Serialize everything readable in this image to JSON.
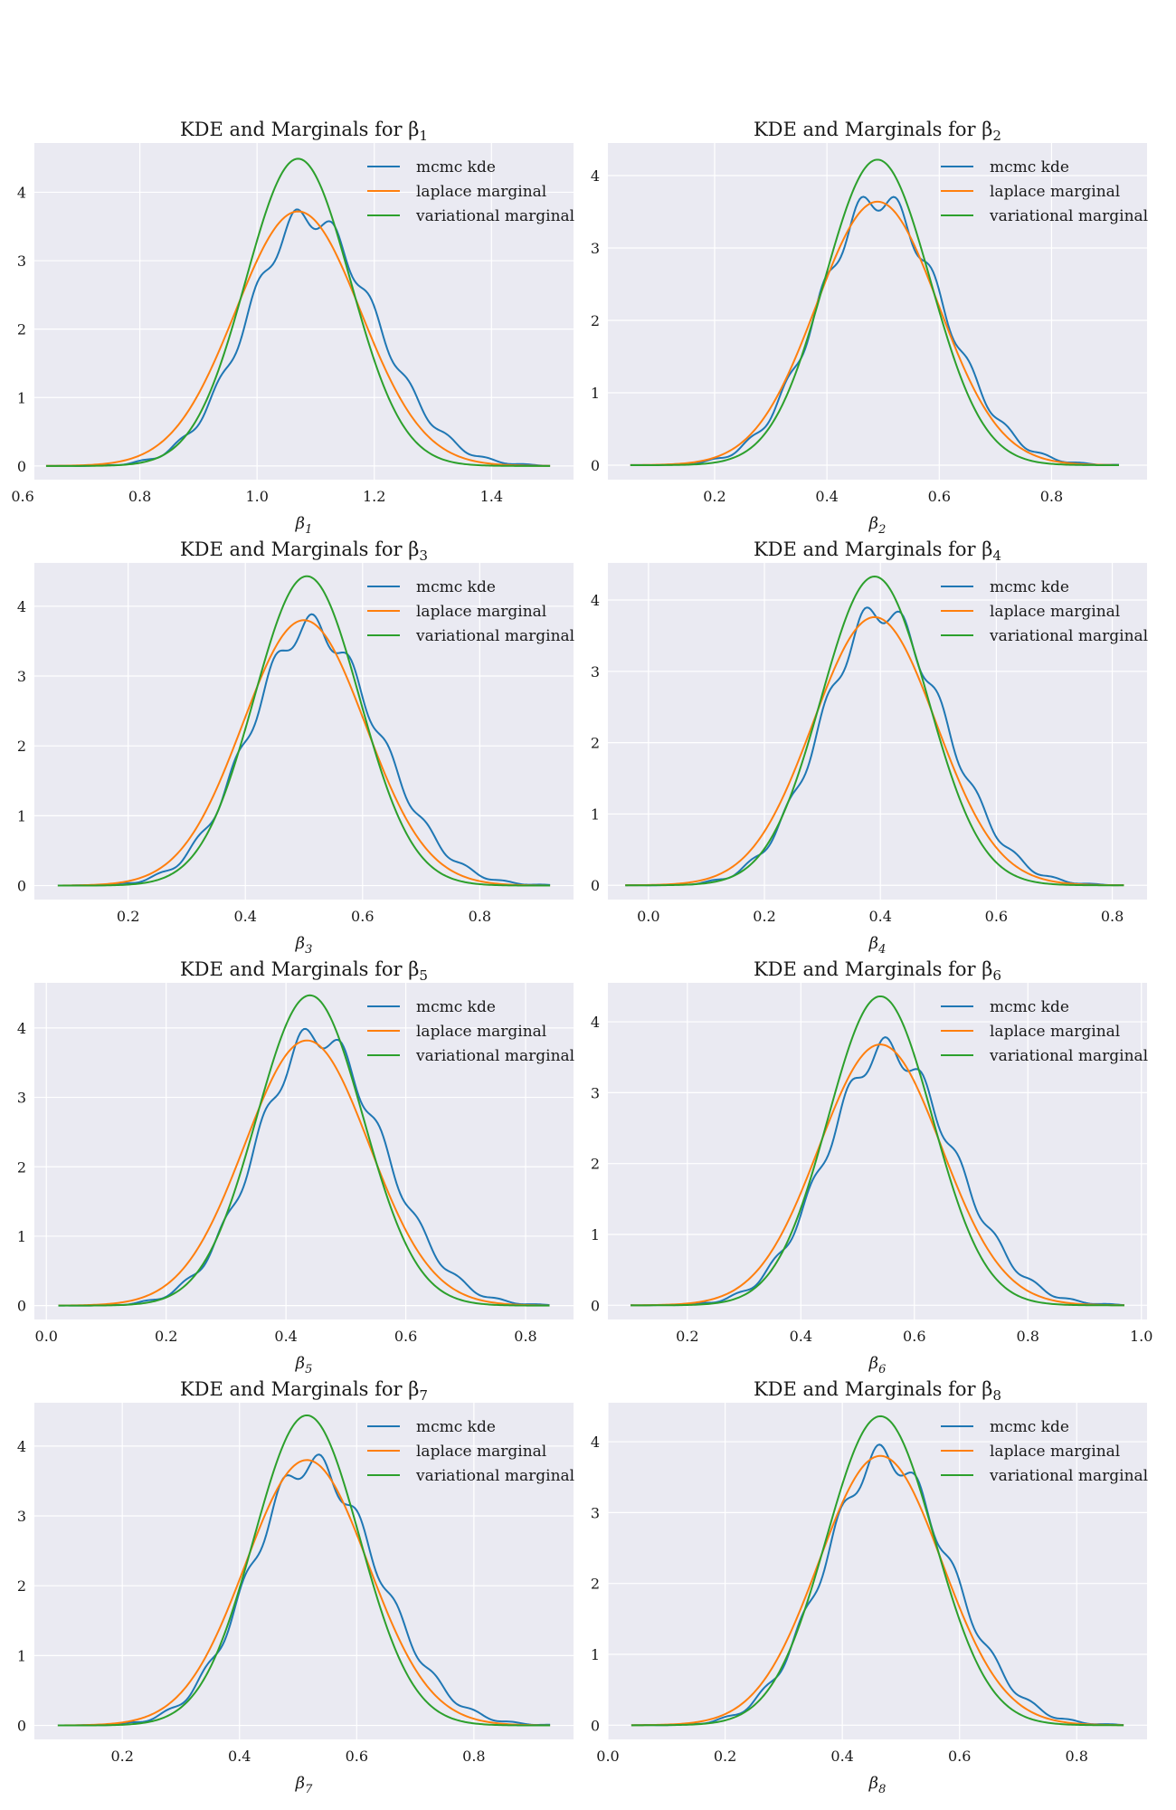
{
  "colors": {
    "background": "#eaeaf2",
    "grid": "#ffffff",
    "mcmc": "#1f77b4",
    "laplace": "#ff7f0e",
    "variational": "#2ca02c"
  },
  "legend_labels": [
    "mcmc kde",
    "laplace marginal",
    "variational marginal"
  ],
  "chart_data": [
    {
      "type": "line",
      "title": "KDE and Marginals for β1",
      "xlabel": "β1",
      "legend": "top-right",
      "grid": true,
      "xlim": [
        0.62,
        1.54
      ],
      "ylim": [
        -0.2,
        4.72
      ],
      "x_range": [
        0.64,
        1.5
      ],
      "xticks": [
        0.6,
        0.8,
        1.0,
        1.2,
        1.4
      ],
      "xtick_labels": [
        "0.6",
        "0.8",
        "1.0",
        "1.2",
        "1.4"
      ],
      "yticks": [
        0,
        1,
        2,
        3,
        4
      ],
      "ytick_labels": [
        "0",
        "1",
        "2",
        "3",
        "4"
      ],
      "series": [
        {
          "name": "mcmc kde",
          "peak_x": 1.085,
          "peak_y": 3.65,
          "sd_left": 0.1,
          "sd_right": 0.115
        },
        {
          "name": "laplace marginal",
          "peak_x": 1.07,
          "peak_y": 3.72,
          "sd_left": 0.107,
          "sd_right": 0.107
        },
        {
          "name": "variational marginal",
          "peak_x": 1.07,
          "peak_y": 4.49,
          "sd_left": 0.089,
          "sd_right": 0.089
        }
      ]
    },
    {
      "type": "line",
      "title": "KDE and Marginals for β2",
      "xlabel": "β2",
      "legend": "top-right",
      "grid": true,
      "xlim": [
        0.01,
        0.97
      ],
      "ylim": [
        -0.2,
        4.45
      ],
      "x_range": [
        0.05,
        0.92
      ],
      "xticks": [
        0.2,
        0.4,
        0.6,
        0.8
      ],
      "xtick_labels": [
        "0.2",
        "0.4",
        "0.6",
        "0.8"
      ],
      "yticks": [
        0,
        1,
        2,
        3,
        4
      ],
      "ytick_labels": [
        "0",
        "1",
        "2",
        "3",
        "4"
      ],
      "series": [
        {
          "name": "mcmc kde",
          "peak_x": 0.49,
          "peak_y": 3.68,
          "sd_left": 0.104,
          "sd_right": 0.115
        },
        {
          "name": "laplace marginal",
          "peak_x": 0.49,
          "peak_y": 3.64,
          "sd_left": 0.109,
          "sd_right": 0.109
        },
        {
          "name": "variational marginal",
          "peak_x": 0.49,
          "peak_y": 4.22,
          "sd_left": 0.094,
          "sd_right": 0.094
        }
      ]
    },
    {
      "type": "line",
      "title": "KDE and Marginals for β3",
      "xlabel": "β3",
      "legend": "top-right",
      "grid": true,
      "xlim": [
        0.04,
        0.96
      ],
      "ylim": [
        -0.2,
        4.62
      ],
      "x_range": [
        0.08,
        0.92
      ],
      "xticks": [
        0.2,
        0.4,
        0.6,
        0.8
      ],
      "xtick_labels": [
        "0.2",
        "0.4",
        "0.6",
        "0.8"
      ],
      "yticks": [
        0,
        1,
        2,
        3,
        4
      ],
      "ytick_labels": [
        "0",
        "1",
        "2",
        "3",
        "4"
      ],
      "series": [
        {
          "name": "mcmc kde",
          "peak_x": 0.51,
          "peak_y": 3.72,
          "sd_left": 0.102,
          "sd_right": 0.115
        },
        {
          "name": "laplace marginal",
          "peak_x": 0.5,
          "peak_y": 3.8,
          "sd_left": 0.105,
          "sd_right": 0.105
        },
        {
          "name": "variational marginal",
          "peak_x": 0.505,
          "peak_y": 4.43,
          "sd_left": 0.09,
          "sd_right": 0.09
        }
      ]
    },
    {
      "type": "line",
      "title": "KDE and Marginals for β4",
      "xlabel": "β4",
      "legend": "top-right",
      "grid": true,
      "xlim": [
        -0.07,
        0.86
      ],
      "ylim": [
        -0.2,
        4.52
      ],
      "x_range": [
        -0.04,
        0.82
      ],
      "xticks": [
        0.0,
        0.2,
        0.4,
        0.6,
        0.8
      ],
      "xtick_labels": [
        "0.0",
        "0.2",
        "0.4",
        "0.6",
        "0.8"
      ],
      "yticks": [
        0,
        1,
        2,
        3,
        4
      ],
      "ytick_labels": [
        "0",
        "1",
        "2",
        "3",
        "4"
      ],
      "series": [
        {
          "name": "mcmc kde",
          "peak_x": 0.4,
          "peak_y": 3.85,
          "sd_left": 0.1,
          "sd_right": 0.11
        },
        {
          "name": "laplace marginal",
          "peak_x": 0.39,
          "peak_y": 3.76,
          "sd_left": 0.106,
          "sd_right": 0.106
        },
        {
          "name": "variational marginal",
          "peak_x": 0.39,
          "peak_y": 4.33,
          "sd_left": 0.092,
          "sd_right": 0.092
        }
      ]
    },
    {
      "type": "line",
      "title": "KDE and Marginals for β5",
      "xlabel": "β5",
      "legend": "top-right",
      "grid": true,
      "xlim": [
        -0.02,
        0.88
      ],
      "ylim": [
        -0.2,
        4.65
      ],
      "x_range": [
        0.02,
        0.84
      ],
      "xticks": [
        0.0,
        0.2,
        0.4,
        0.6,
        0.8
      ],
      "xtick_labels": [
        "0.0",
        "0.2",
        "0.4",
        "0.6",
        "0.8"
      ],
      "yticks": [
        0,
        1,
        2,
        3,
        4
      ],
      "ytick_labels": [
        "0",
        "1",
        "2",
        "3",
        "4"
      ],
      "series": [
        {
          "name": "mcmc kde",
          "peak_x": 0.45,
          "peak_y": 3.9,
          "sd_left": 0.098,
          "sd_right": 0.11
        },
        {
          "name": "laplace marginal",
          "peak_x": 0.435,
          "peak_y": 3.82,
          "sd_left": 0.104,
          "sd_right": 0.104
        },
        {
          "name": "variational marginal",
          "peak_x": 0.44,
          "peak_y": 4.47,
          "sd_left": 0.089,
          "sd_right": 0.089
        }
      ]
    },
    {
      "type": "line",
      "title": "KDE and Marginals for β6",
      "xlabel": "β6",
      "legend": "top-right",
      "grid": true,
      "xlim": [
        0.06,
        1.01
      ],
      "ylim": [
        -0.2,
        4.55
      ],
      "x_range": [
        0.1,
        0.97
      ],
      "xticks": [
        0.2,
        0.4,
        0.6,
        0.8,
        1.0
      ],
      "xtick_labels": [
        "0.2",
        "0.4",
        "0.6",
        "0.8",
        "1.0"
      ],
      "yticks": [
        0,
        1,
        2,
        3,
        4
      ],
      "ytick_labels": [
        "0",
        "1",
        "2",
        "3",
        "4"
      ],
      "series": [
        {
          "name": "mcmc kde",
          "peak_x": 0.55,
          "peak_y": 3.62,
          "sd_left": 0.104,
          "sd_right": 0.117
        },
        {
          "name": "laplace marginal",
          "peak_x": 0.54,
          "peak_y": 3.68,
          "sd_left": 0.108,
          "sd_right": 0.108
        },
        {
          "name": "variational marginal",
          "peak_x": 0.54,
          "peak_y": 4.36,
          "sd_left": 0.092,
          "sd_right": 0.092
        }
      ]
    },
    {
      "type": "line",
      "title": "KDE and Marginals for β7",
      "xlabel": "β7",
      "legend": "top-right",
      "grid": true,
      "xlim": [
        0.05,
        0.97
      ],
      "ylim": [
        -0.2,
        4.62
      ],
      "x_range": [
        0.09,
        0.93
      ],
      "xticks": [
        0.2,
        0.4,
        0.6,
        0.8
      ],
      "xtick_labels": [
        "0.2",
        "0.4",
        "0.6",
        "0.8"
      ],
      "yticks": [
        0,
        1,
        2,
        3,
        4
      ],
      "ytick_labels": [
        "0",
        "1",
        "2",
        "3",
        "4"
      ],
      "series": [
        {
          "name": "mcmc kde",
          "peak_x": 0.52,
          "peak_y": 3.75,
          "sd_left": 0.1,
          "sd_right": 0.115
        },
        {
          "name": "laplace marginal",
          "peak_x": 0.515,
          "peak_y": 3.8,
          "sd_left": 0.105,
          "sd_right": 0.105
        },
        {
          "name": "variational marginal",
          "peak_x": 0.515,
          "peak_y": 4.44,
          "sd_left": 0.09,
          "sd_right": 0.09
        }
      ]
    },
    {
      "type": "line",
      "title": "KDE and Marginals for β8",
      "xlabel": "β8",
      "legend": "top-right",
      "grid": true,
      "xlim": [
        0.0,
        0.92
      ],
      "ylim": [
        -0.2,
        4.55
      ],
      "x_range": [
        0.04,
        0.88
      ],
      "xticks": [
        0.0,
        0.2,
        0.4,
        0.6,
        0.8
      ],
      "xtick_labels": [
        "0.0",
        "0.2",
        "0.4",
        "0.6",
        "0.8"
      ],
      "yticks": [
        0,
        1,
        2,
        3,
        4
      ],
      "ytick_labels": [
        "0",
        "1",
        "2",
        "3",
        "4"
      ],
      "series": [
        {
          "name": "mcmc kde",
          "peak_x": 0.47,
          "peak_y": 3.8,
          "sd_left": 0.1,
          "sd_right": 0.112
        },
        {
          "name": "laplace marginal",
          "peak_x": 0.465,
          "peak_y": 3.8,
          "sd_left": 0.105,
          "sd_right": 0.105
        },
        {
          "name": "variational marginal",
          "peak_x": 0.465,
          "peak_y": 4.36,
          "sd_left": 0.092,
          "sd_right": 0.092
        }
      ]
    }
  ]
}
